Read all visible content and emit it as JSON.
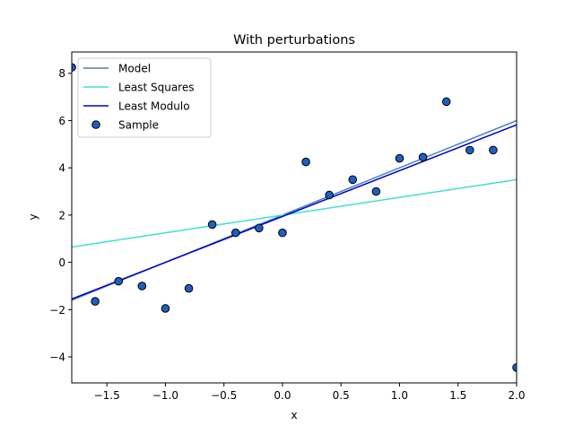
{
  "chart_data": {
    "type": "scatter",
    "title": "With perturbations",
    "xlabel": "x",
    "ylabel": "y",
    "xlim": [
      -1.8,
      2.0
    ],
    "ylim": [
      -5.1,
      8.9
    ],
    "xticks": [
      -1.5,
      -1.0,
      -0.5,
      0.0,
      0.5,
      1.0,
      1.5,
      2.0
    ],
    "xtick_labels": [
      "−1.5",
      "−1.0",
      "−0.5",
      "0.0",
      "0.5",
      "1.0",
      "1.5",
      "2.0"
    ],
    "yticks": [
      -4,
      -2,
      0,
      2,
      4,
      6,
      8
    ],
    "ytick_labels": [
      "−4",
      "−2",
      "0",
      "2",
      "4",
      "6",
      "8"
    ],
    "grid": false,
    "legend_position": "top-left",
    "lines": [
      {
        "name": "Model",
        "color": "#4682b4",
        "x": [
          -1.8,
          2.0
        ],
        "y": [
          -1.6,
          6.0
        ]
      },
      {
        "name": "Least Squares",
        "color": "#40e0d0",
        "x": [
          -1.8,
          2.0
        ],
        "y": [
          0.65,
          3.5
        ]
      },
      {
        "name": "Least Modulo",
        "color": "#0000cd",
        "x": [
          -1.8,
          2.0
        ],
        "y": [
          -1.55,
          5.82
        ]
      }
    ],
    "scatter": {
      "name": "Sample",
      "color": "#1f5fbf",
      "edgecolor": "#000000",
      "x": [
        -1.8,
        -1.6,
        -1.4,
        -1.2,
        -1.0,
        -0.8,
        -0.6,
        -0.4,
        -0.2,
        0.0,
        0.2,
        0.4,
        0.6,
        0.8,
        1.0,
        1.2,
        1.4,
        1.6,
        1.8,
        2.0
      ],
      "y": [
        8.25,
        -1.65,
        -0.8,
        -1.0,
        -1.95,
        -1.1,
        1.6,
        1.25,
        1.45,
        1.25,
        4.25,
        2.85,
        3.5,
        3.0,
        4.4,
        4.45,
        6.8,
        4.75,
        4.75,
        -4.45
      ]
    }
  }
}
